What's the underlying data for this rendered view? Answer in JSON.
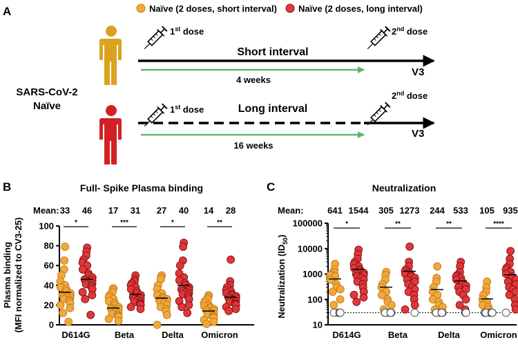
{
  "colors": {
    "short": "#F2A93B",
    "short_edge": "#C77D1A",
    "long": "#E0383A",
    "long_edge": "#8A1418",
    "person_short": "#D9A31E",
    "person_long": "#D32024",
    "green": "#5FB56B",
    "open_fill": "#ffffff",
    "open_edge": "#555555"
  },
  "panelA": {
    "letter": "A",
    "legend": [
      {
        "label": "Naïve (2 doses, short interval)",
        "color": "short"
      },
      {
        "label": "Naïve (2 doses, long interval)",
        "color": "long"
      }
    ],
    "cohort_line1": "SARS-CoV-2",
    "cohort_line2": "Naïve",
    "dose1_num": "1",
    "dose1_sup": "st",
    "dose_word": " dose",
    "dose2_num": "2",
    "dose2_sup": "nd",
    "short_title": "Short interval",
    "short_weeks": "4 weeks",
    "long_title": "Long interval",
    "long_weeks": "16 weeks",
    "v3": "V3"
  },
  "panelB": {
    "letter": "B",
    "mean_label": "Mean:"
  },
  "panelC": {
    "letter": "C",
    "mean_label": "Mean:"
  },
  "chart_data": [
    {
      "type": "scatter",
      "title": "Full- Spike Plasma binding",
      "ylabel_line1": "Plasma binding",
      "ylabel_line2": "(MFI normalized to CV3-25)",
      "yscale": "linear",
      "ylim": [
        0,
        100
      ],
      "yticks": [
        "0",
        "20",
        "40",
        "60",
        "80",
        "100"
      ],
      "categories": [
        "D614G",
        "Beta",
        "Delta",
        "Omicron"
      ],
      "means": [
        [
          "33",
          "46"
        ],
        [
          "17",
          "31"
        ],
        [
          "27",
          "40"
        ],
        [
          "14",
          "28"
        ]
      ],
      "significance": [
        "*",
        "***",
        "*",
        "**"
      ],
      "series": [
        {
          "name": "Naïve (2 doses, short interval)",
          "groups": [
            [
              79,
              65,
              56,
              50,
              44,
              40,
              38,
              36,
              34,
              32,
              30,
              29,
              28,
              28,
              27,
              26,
              25,
              24,
              22,
              20,
              17,
              12,
              3
            ],
            [
              37,
              35,
              33,
              30,
              28,
              26,
              24,
              22,
              20,
              18,
              17,
              16,
              15,
              14,
              12,
              11,
              10,
              9,
              8,
              6,
              4
            ],
            [
              50,
              48,
              46,
              40,
              36,
              32,
              30,
              28,
              27,
              26,
              25,
              24,
              23,
              22,
              20,
              18,
              16,
              14,
              10,
              0
            ],
            [
              30,
              28,
              26,
              24,
              22,
              20,
              19,
              18,
              17,
              16,
              15,
              14,
              13,
              12,
              11,
              10,
              9,
              8,
              7,
              5,
              3,
              1
            ]
          ]
        },
        {
          "name": "Naïve (2 doses, long interval)",
          "groups": [
            [
              78,
              74,
              70,
              66,
              63,
              60,
              56,
              52,
              50,
              48,
              46,
              45,
              44,
              43,
              42,
              41,
              40,
              38,
              36,
              33,
              30,
              26,
              10
            ],
            [
              50,
              46,
              44,
              42,
              40,
              38,
              36,
              34,
              32,
              30,
              28,
              27,
              26,
              25,
              24,
              23,
              22,
              21,
              20,
              18,
              16
            ],
            [
              83,
              79,
              65,
              60,
              52,
              48,
              45,
              42,
              40,
              38,
              36,
              35,
              34,
              33,
              32,
              31,
              30,
              28,
              26,
              24,
              20,
              18,
              12
            ],
            [
              66,
              44,
              40,
              38,
              35,
              34,
              32,
              31,
              30,
              29,
              28,
              27,
              26,
              25,
              24,
              23,
              22,
              21,
              20,
              18,
              16,
              14
            ]
          ]
        }
      ]
    },
    {
      "type": "scatter",
      "title": "Neutralization",
      "ylabel": "Neutralization (ID",
      "ylabel_sub": "50",
      "ylabel_end": ")",
      "yscale": "log",
      "ylim": [
        10,
        100000
      ],
      "yticks": [
        "10",
        "100",
        "1000",
        "10000",
        "100000"
      ],
      "detection_limit": 30,
      "categories": [
        "D614G",
        "Beta",
        "Delta",
        "Omicron"
      ],
      "means": [
        [
          "641",
          "1544"
        ],
        [
          "305",
          "1273"
        ],
        [
          "244",
          "533"
        ],
        [
          "105",
          "935"
        ]
      ],
      "significance": [
        "*",
        "**",
        "**",
        "****"
      ],
      "series": [
        {
          "name": "Naïve (2 doses, short interval)",
          "groups": [
            [
              2500,
              1500,
              1200,
              1000,
              900,
              800,
              600,
              400,
              300,
              250,
              200,
              100,
              60,
              30,
              30,
              30,
              30,
              30,
              30
            ],
            [
              1200,
              900,
              600,
              400,
              300,
              200,
              150,
              100,
              80,
              60,
              40,
              30,
              30,
              30,
              30,
              30,
              30,
              30
            ],
            [
              2000,
              700,
              500,
              300,
              200,
              150,
              100,
              80,
              60,
              50,
              40,
              30,
              30,
              30,
              30,
              30,
              30,
              30
            ],
            [
              500,
              300,
              200,
              150,
              100,
              80,
              60,
              50,
              40,
              30,
              30,
              30,
              30,
              30,
              30,
              30,
              30,
              30,
              30
            ]
          ],
          "open_markers_at_limit": true
        },
        {
          "name": "Naïve (2 doses, long interval)",
          "groups": [
            [
              9000,
              6000,
              4000,
              3000,
              2500,
              2000,
              1700,
              1500,
              1300,
              1100,
              1000,
              900,
              800,
              700,
              600,
              500,
              400,
              300,
              200,
              150,
              120,
              80
            ],
            [
              12000,
              3000,
              2000,
              1500,
              1300,
              1100,
              1000,
              900,
              800,
              700,
              600,
              500,
              400,
              300,
              250,
              200,
              150,
              100,
              60,
              40,
              30
            ],
            [
              3000,
              2000,
              1200,
              900,
              800,
              700,
              600,
              500,
              400,
              350,
              300,
              250,
              200,
              150,
              100,
              60,
              40,
              30,
              30
            ],
            [
              8000,
              4000,
              2500,
              1800,
              1500,
              1200,
              1000,
              800,
              700,
              600,
              500,
              400,
              300,
              250,
              200,
              150,
              100,
              60,
              40,
              30
            ]
          ]
        }
      ]
    }
  ]
}
